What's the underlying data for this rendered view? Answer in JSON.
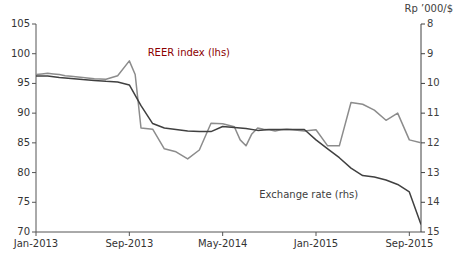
{
  "chart_data": {
    "type": "line",
    "title": "Rp ’000/$",
    "xlim": [
      0,
      33
    ],
    "xticks": [
      {
        "value": 0,
        "label": "Jan-2013"
      },
      {
        "value": 8,
        "label": "Sep-2013"
      },
      {
        "value": 16,
        "label": "May-2014"
      },
      {
        "value": 24,
        "label": "Jan-2015"
      },
      {
        "value": 32,
        "label": "Sep-2015"
      }
    ],
    "ylim": [
      70,
      105
    ],
    "yticks": [
      70,
      75,
      80,
      85,
      90,
      95,
      100,
      105
    ],
    "y2lim": [
      15,
      8
    ],
    "y2ticks": [
      8,
      9,
      10,
      11,
      12,
      13,
      14,
      15
    ],
    "grid": false,
    "series": [
      {
        "name": "REER index (lhs)",
        "color": "#8c8c8c",
        "x": [
          0,
          0.5,
          1,
          1.5,
          2,
          2.5,
          3,
          4,
          5,
          6,
          7,
          8,
          8.5,
          9,
          10,
          11,
          12,
          13,
          14,
          15,
          16,
          17,
          17.5,
          18,
          18.5,
          19,
          19.5,
          20,
          20.5,
          21,
          21.5,
          22,
          23,
          24,
          25,
          26,
          27,
          28,
          29,
          30,
          31,
          32,
          33
        ],
        "values": [
          96.5,
          96.6,
          96.7,
          96.6,
          96.5,
          96.3,
          96.2,
          96.0,
          95.8,
          95.7,
          96.3,
          98.8,
          96.5,
          87.5,
          87.3,
          84.0,
          83.5,
          82.3,
          83.8,
          88.3,
          88.2,
          87.7,
          85.5,
          84.5,
          86.5,
          87.5,
          87.3,
          87.2,
          87.0,
          87.2,
          87.3,
          87.2,
          87.0,
          87.2,
          84.5,
          84.5,
          91.8,
          91.5,
          90.5,
          88.8,
          90.0,
          85.5,
          85.0
        ]
      },
      {
        "name": "Exchange rate (rhs)",
        "color": "#404040",
        "axis": "y2",
        "x": [
          0,
          1,
          2,
          3,
          4,
          5,
          6,
          7,
          8,
          9,
          10,
          11,
          12,
          13,
          14,
          15,
          16,
          17,
          18,
          19,
          20,
          21,
          22,
          23,
          24,
          25,
          26,
          27,
          28,
          29,
          30,
          31,
          32,
          33
        ],
        "values": [
          9.75,
          9.75,
          9.8,
          9.83,
          9.87,
          9.9,
          9.93,
          9.95,
          10.05,
          10.75,
          11.35,
          11.5,
          11.55,
          11.6,
          11.62,
          11.62,
          11.45,
          11.48,
          11.52,
          11.58,
          11.55,
          11.55,
          11.55,
          11.55,
          11.9,
          12.2,
          12.5,
          12.85,
          13.1,
          13.15,
          13.25,
          13.4,
          13.65,
          14.75
        ]
      }
    ]
  }
}
